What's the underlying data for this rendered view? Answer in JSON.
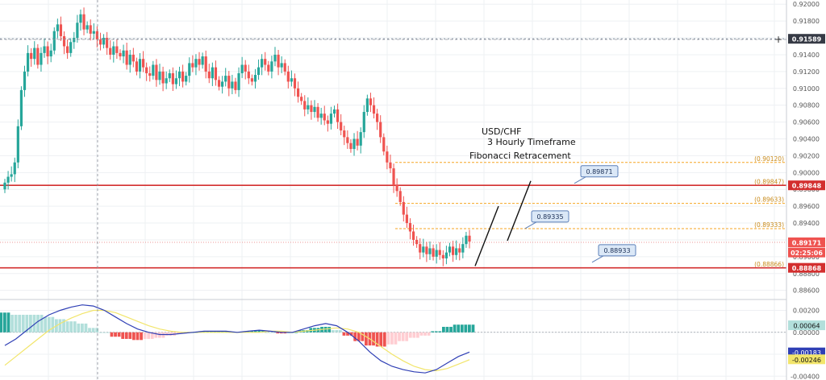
{
  "annotations": {
    "title_line1": "USD/CHF",
    "title_line2": "3 Hourly Timeframe",
    "title_line3": "Fibonacci Retracement"
  },
  "colors": {
    "bull": "#26a69a",
    "bear": "#ef5350",
    "fib": "#f5a623",
    "level": "#d32f2f",
    "macd": "#2f3fb5",
    "signal": "#f2e56b",
    "callout_fill": "#dbe8f7",
    "callout_stroke": "#5b7fb8",
    "grid": "#eef0f3"
  },
  "chart_data": {
    "type": "candlestick",
    "symbol": "USD/CHF",
    "price_axis": {
      "ylim": [
        0.8853,
        0.9205
      ],
      "ticks": [
        "0.92000",
        "0.91800",
        "0.91600",
        "0.91400",
        "0.91200",
        "0.91000",
        "0.90800",
        "0.90600",
        "0.90400",
        "0.90200",
        "0.90000",
        "0.89800",
        "0.89600",
        "0.89400",
        "0.89200",
        "0.89000",
        "0.88800",
        "0.88600"
      ]
    },
    "price_badges": [
      {
        "label": "0.91589",
        "price": 0.91589,
        "color": "#363a45"
      },
      {
        "label": "0.89848",
        "price": 0.89848,
        "color": "#d32f2f"
      },
      {
        "label": "0.89171",
        "price": 0.89171,
        "color": "#ef5350"
      },
      {
        "label": "02:25:06",
        "price": 0.8905,
        "color": "#ef5350"
      },
      {
        "label": "0.88868",
        "price": 0.88868,
        "color": "#d32f2f"
      }
    ],
    "horizontal_lines": [
      {
        "price": 0.89848,
        "kind": "level"
      },
      {
        "price": 0.88868,
        "kind": "level"
      },
      {
        "price": 0.91589,
        "kind": "dashed"
      },
      {
        "price": 0.89171,
        "kind": "dotted"
      }
    ],
    "fib_levels": [
      {
        "label": "(0.90120)",
        "price": 0.9012
      },
      {
        "label": "(0.89847)",
        "price": 0.89847
      },
      {
        "label": "(0.89633)",
        "price": 0.89633
      },
      {
        "label": "(0.89333)",
        "price": 0.89333
      },
      {
        "label": "(0.88866)",
        "price": 0.88866
      }
    ],
    "callouts": [
      {
        "label": "0.89871",
        "price": 0.89871
      },
      {
        "label": "0.89335",
        "price": 0.89335
      },
      {
        "label": "0.88933",
        "price": 0.88933
      }
    ],
    "trend_arrows": [
      {
        "from": [
          0.8889
        ],
        "to": [
          0.896
        ]
      },
      {
        "from": [
          0.8919
        ],
        "to": [
          0.899
        ]
      }
    ],
    "candles_close": [
      0.8988,
      0.8995,
      0.8998,
      0.9012,
      0.9055,
      0.9098,
      0.912,
      0.9142,
      0.9135,
      0.9148,
      0.9128,
      0.9142,
      0.915,
      0.9138,
      0.9145,
      0.9168,
      0.9176,
      0.9162,
      0.915,
      0.9142,
      0.9155,
      0.916,
      0.9178,
      0.9188,
      0.917,
      0.9175,
      0.9165,
      0.9168,
      0.9158,
      0.9152,
      0.916,
      0.9148,
      0.914,
      0.915,
      0.9142,
      0.9138,
      0.9145,
      0.9128,
      0.914,
      0.9132,
      0.912,
      0.9135,
      0.9125,
      0.9118,
      0.9115,
      0.9128,
      0.911,
      0.912,
      0.9106,
      0.9112,
      0.9118,
      0.9105,
      0.9112,
      0.912,
      0.9108,
      0.9115,
      0.913,
      0.9125,
      0.9135,
      0.9128,
      0.9138,
      0.912,
      0.9112,
      0.9125,
      0.911,
      0.9102,
      0.9108,
      0.9115,
      0.91,
      0.9108,
      0.9098,
      0.9118,
      0.9128,
      0.912,
      0.9112,
      0.9108,
      0.9116,
      0.9125,
      0.9135,
      0.9128,
      0.912,
      0.9132,
      0.914,
      0.9125,
      0.913,
      0.912,
      0.9108,
      0.9112,
      0.91,
      0.909,
      0.9085,
      0.9075,
      0.908,
      0.9072,
      0.9078,
      0.9065,
      0.907,
      0.9062,
      0.9058,
      0.907,
      0.9075,
      0.906,
      0.905,
      0.9042,
      0.9035,
      0.9028,
      0.904,
      0.9032,
      0.9048,
      0.9072,
      0.9088,
      0.908,
      0.907,
      0.906,
      0.9042,
      0.9025,
      0.9012,
      0.9005,
      0.8985,
      0.8978,
      0.8965,
      0.895,
      0.894,
      0.893,
      0.892,
      0.8915,
      0.8905,
      0.8912,
      0.8903,
      0.891,
      0.89,
      0.8908,
      0.8902,
      0.8898,
      0.8905,
      0.8912,
      0.8902,
      0.891,
      0.8905,
      0.8915,
      0.8925,
      0.8918
    ],
    "macd_axis": {
      "ylim": [
        -0.0042,
        0.0027
      ],
      "ticks": [
        "0.00200",
        "0.00000",
        "-0.00200",
        "-0.00400"
      ]
    },
    "macd_badges": [
      {
        "label": "0.00064",
        "value": 0.00064,
        "color": "#b2dfdb"
      },
      {
        "label": "-0.00183",
        "value": -0.00183,
        "color": "#2f3fb5"
      },
      {
        "label": "-0.00246",
        "value": -0.00246,
        "color": "#f2e56b"
      }
    ],
    "macd_line": [
      -0.0012,
      -0.0006,
      0.0002,
      0.001,
      0.0016,
      0.002,
      0.0023,
      0.0025,
      0.0024,
      0.002,
      0.0014,
      0.0008,
      0.0003,
      0.0,
      -0.0002,
      -0.0002,
      -0.0001,
      0.0,
      0.0001,
      0.0001,
      0.0001,
      0.0,
      0.0001,
      0.0002,
      0.0001,
      0.0,
      0.0,
      0.0003,
      0.0006,
      0.0008,
      0.0006,
      0.0,
      -0.0008,
      -0.0018,
      -0.0026,
      -0.0031,
      -0.0034,
      -0.0036,
      -0.0037,
      -0.0034,
      -0.0028,
      -0.0022,
      -0.0018
    ],
    "signal_line": [
      -0.003,
      -0.0022,
      -0.0014,
      -0.0006,
      0.0002,
      0.0008,
      0.0013,
      0.0017,
      0.002,
      0.002,
      0.0018,
      0.0014,
      0.001,
      0.0006,
      0.0003,
      0.0001,
      0.0,
      0.0,
      0.0,
      0.0,
      0.0,
      0.0,
      0.0,
      0.0,
      0.0001,
      0.0001,
      0.0,
      0.0001,
      0.0002,
      0.0003,
      0.0004,
      0.0003,
      0.0,
      -0.0006,
      -0.0013,
      -0.002,
      -0.0026,
      -0.0031,
      -0.0034,
      -0.0035,
      -0.0033,
      -0.0029,
      -0.0025
    ]
  }
}
